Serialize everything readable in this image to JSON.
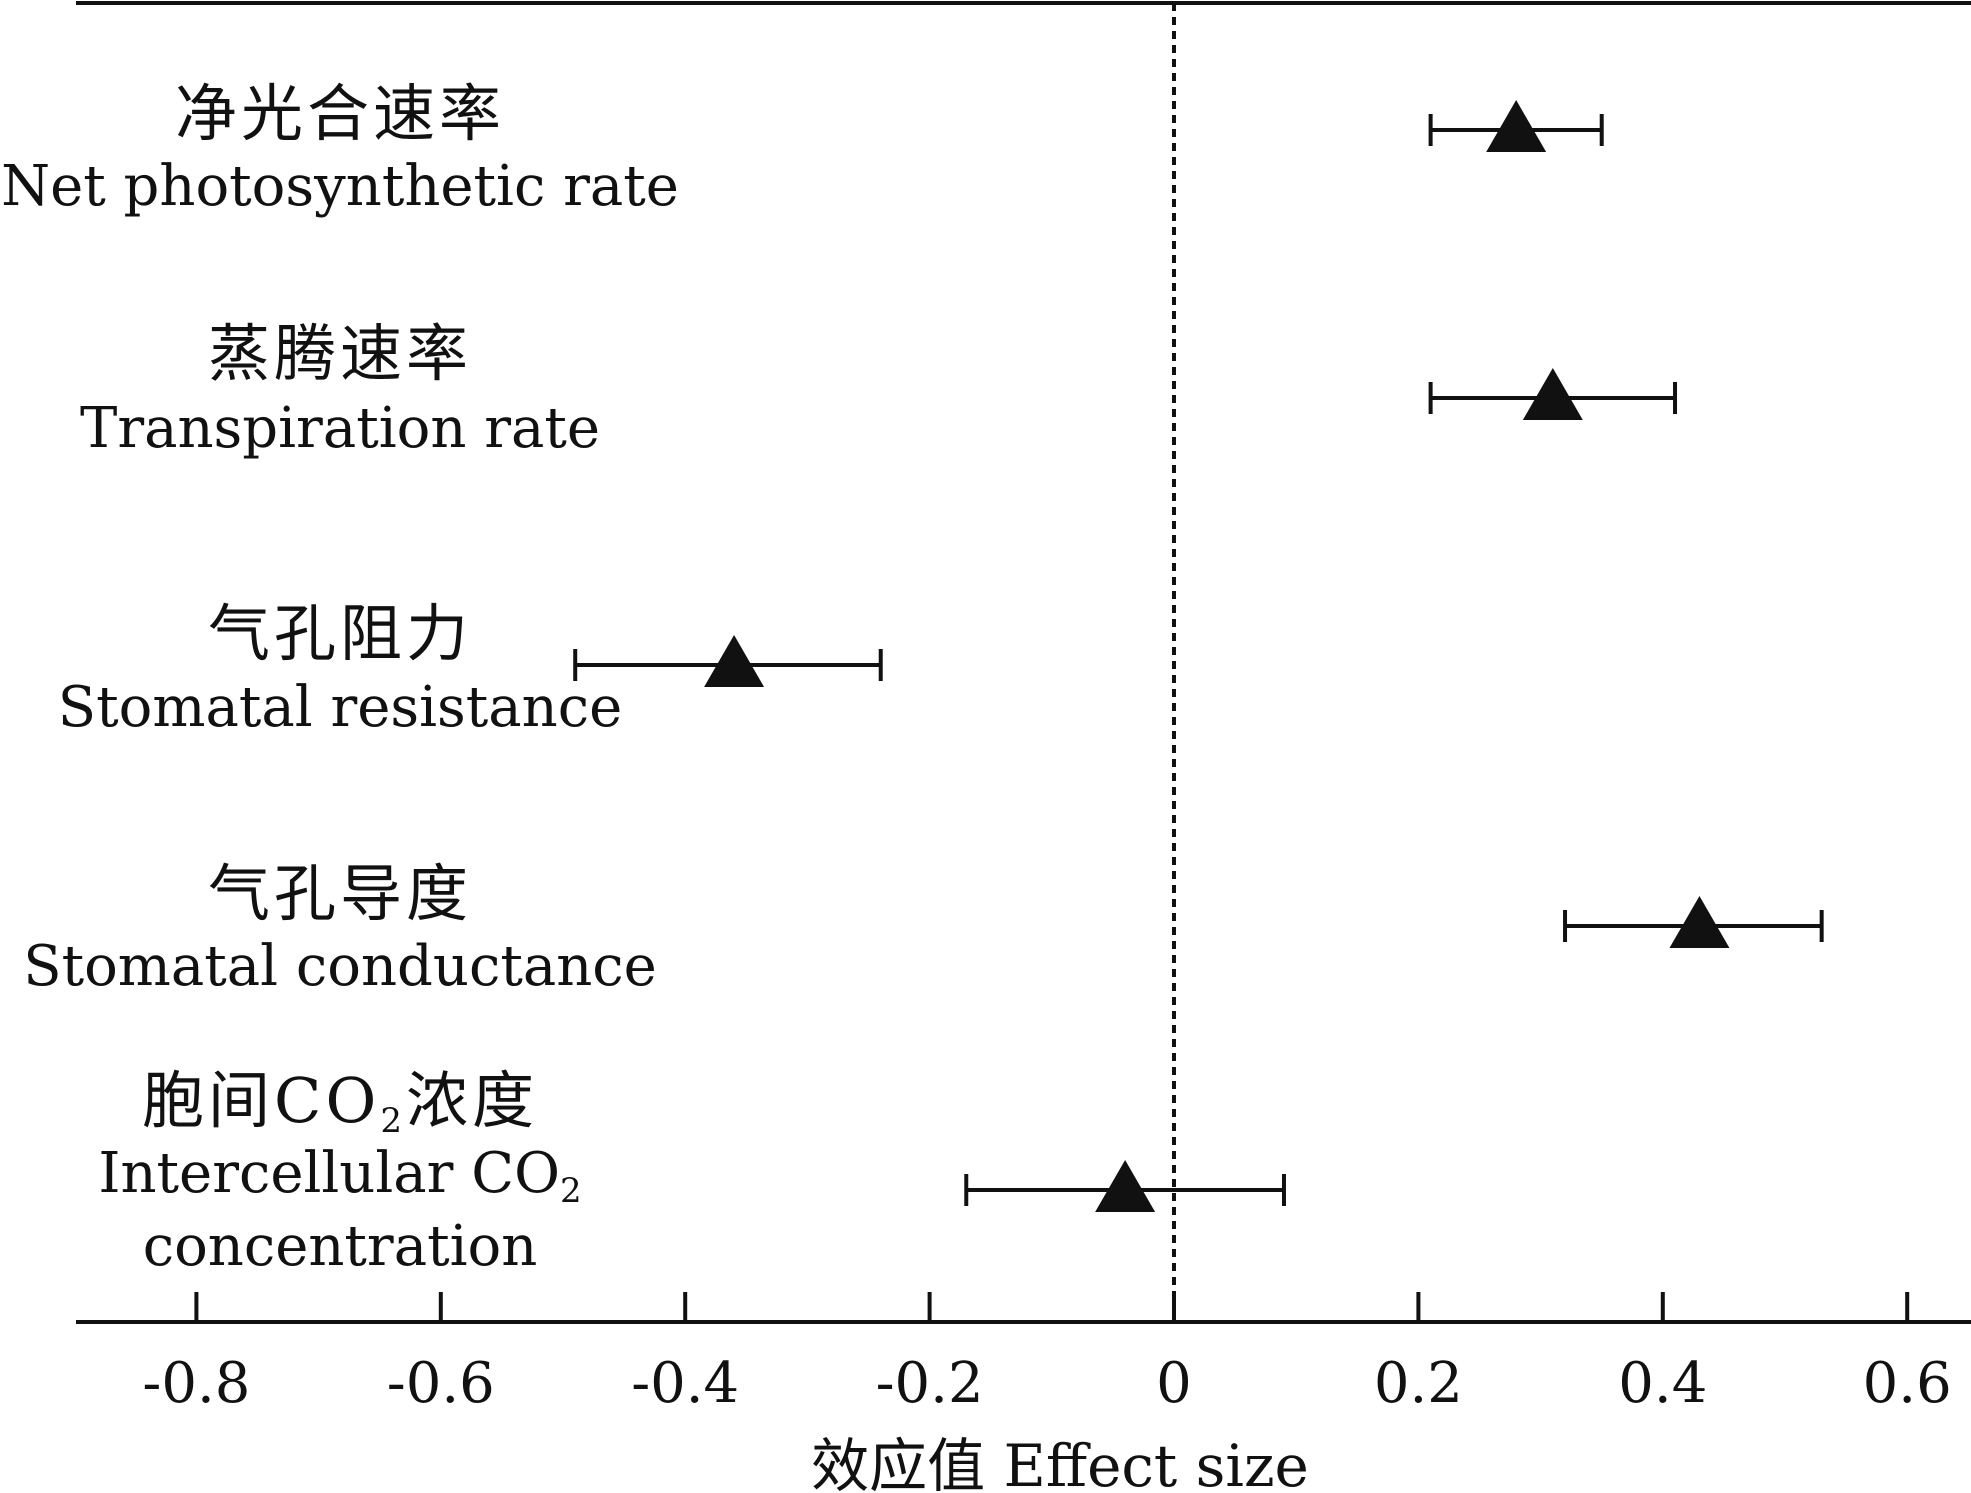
{
  "chart_data": {
    "type": "scatter",
    "subtype": "forest-plot",
    "title": "",
    "xlabel": "效应值 Effect size",
    "ylabel": "",
    "xlim": [
      -0.9,
      0.65
    ],
    "x_ticks": [
      -0.8,
      -0.6,
      -0.4,
      -0.2,
      0,
      0.2,
      0.4,
      0.6
    ],
    "x_tick_labels": [
      "-0.8",
      "-0.6",
      "-0.4",
      "-0.2",
      "0",
      "0.2",
      "0.4",
      "0.6"
    ],
    "reference_line": {
      "x": 0,
      "style": "dotted"
    },
    "marker": "triangle",
    "grid": false,
    "categories": [
      {
        "label_zh": "净光合速率",
        "label_en_lines": [
          "Net photosynthetic rate"
        ],
        "estimate": 0.28,
        "ci_low": 0.21,
        "ci_high": 0.35
      },
      {
        "label_zh": "蒸腾速率",
        "label_en_lines": [
          "Transpiration rate"
        ],
        "estimate": 0.31,
        "ci_low": 0.21,
        "ci_high": 0.41
      },
      {
        "label_zh": "气孔阻力",
        "label_en_lines": [
          "Stomatal resistance"
        ],
        "estimate": -0.36,
        "ci_low": -0.49,
        "ci_high": -0.24
      },
      {
        "label_zh": "气孔导度",
        "label_en_lines": [
          "Stomatal conductance"
        ],
        "estimate": 0.43,
        "ci_low": 0.32,
        "ci_high": 0.53
      },
      {
        "label_zh_parts": [
          "胞间CO",
          "2",
          "浓度"
        ],
        "label_en_lines": [
          "Intercellular CO",
          "concentration"
        ],
        "label_en_subscript": "2",
        "estimate": -0.04,
        "ci_low": -0.17,
        "ci_high": 0.09
      }
    ]
  }
}
